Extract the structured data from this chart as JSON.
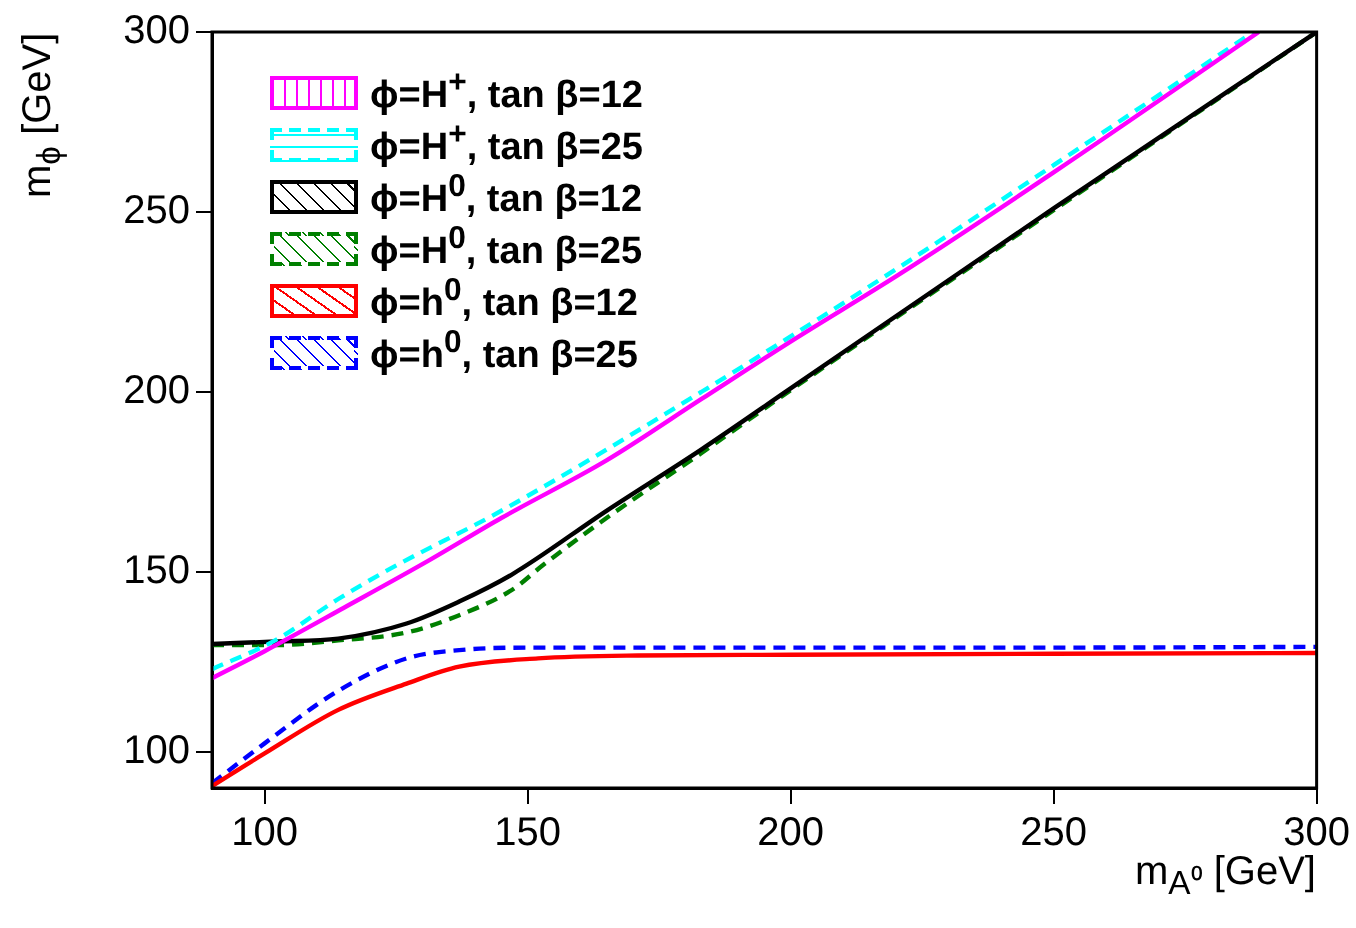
{
  "chart_data": {
    "type": "line",
    "xlabel": "m$_{A⁰}$ [GeV]",
    "ylabel": "m$_{ϕ}$ [GeV]",
    "xlim": [
      90,
      300
    ],
    "ylim": [
      90,
      300
    ],
    "xticks": [
      100,
      150,
      200,
      250,
      300
    ],
    "yticks": [
      100,
      150,
      200,
      250,
      300
    ],
    "grid": false,
    "legend": "top left",
    "marker": "none",
    "series": [
      {
        "name": "ϕ=H$^{+}$, tan β=12",
        "color": "#ff00ff",
        "line_style": "solid",
        "x": [
          90,
          100,
          115,
          131,
          145,
          165,
          183,
          200,
          221,
          250,
          289
        ],
        "values": [
          120.5,
          128,
          140,
          153,
          165,
          181,
          198,
          214,
          233,
          261,
          300
        ]
      },
      {
        "name": "ϕ=H$^{+}$, tan β=25",
        "color": "#00ffff",
        "line_style": "dashed",
        "x": [
          90,
          102,
          114,
          124,
          145,
          183,
          221,
          250,
          288
        ],
        "values": [
          123,
          131,
          142.5,
          151,
          167,
          200,
          235,
          263,
          300
        ]
      },
      {
        "name": "ϕ=H$^{0}$, tan β=12",
        "color": "#000000",
        "line_style": "solid",
        "x": [
          90,
          102,
          114,
          127,
          137,
          147,
          165,
          183,
          200,
          250,
          300
        ],
        "values": [
          130,
          130.7,
          131.5,
          135.7,
          141.8,
          149.3,
          167,
          184,
          201,
          251,
          300
        ]
      },
      {
        "name": "ϕ=H$^{0}$, tan β=25",
        "color": "#008000",
        "line_style": "dashed",
        "x": [
          90,
          102,
          114,
          127,
          137,
          147,
          153,
          165,
          183,
          200,
          250,
          300
        ],
        "values": [
          129.7,
          129.7,
          131,
          133.2,
          138,
          145,
          152,
          165,
          183,
          200.5,
          250.5,
          300
        ]
      },
      {
        "name": "ϕ=h$^{0}$, tan β=12",
        "color": "#ff0000",
        "line_style": "solid",
        "x": [
          90,
          100,
          114,
          127,
          137,
          152,
          171,
          200,
          250,
          300
        ],
        "values": [
          90.5,
          99.6,
          111.7,
          119,
          123.7,
          126,
          126.8,
          127,
          127.3,
          127.5
        ]
      },
      {
        "name": "ϕ=h$^{0}$, tan β=25",
        "color": "#0000ff",
        "line_style": "dashed",
        "x": [
          90,
          100,
          114,
          127,
          137,
          152,
          200,
          250,
          300
        ],
        "values": [
          91.3,
          102.4,
          117,
          126,
          128.3,
          129,
          129,
          129,
          129.2
        ]
      }
    ]
  }
}
